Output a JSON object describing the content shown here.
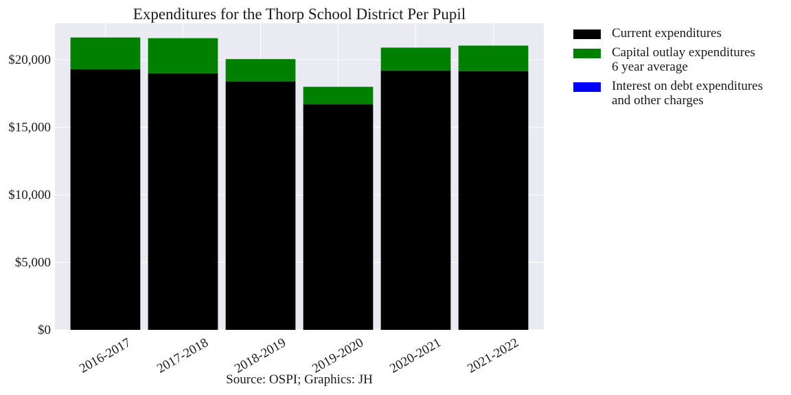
{
  "chart_data": {
    "type": "bar",
    "stacked": true,
    "title": "Expenditures for the Thorp School District Per Pupil",
    "categories": [
      "2016-2017",
      "2017-2018",
      "2018-2019",
      "2019-2020",
      "2020-2021",
      "2021-2022"
    ],
    "series": [
      {
        "name": "Current expenditures",
        "color": "#000000",
        "values": [
          19300,
          19000,
          18400,
          16700,
          19200,
          19150
        ]
      },
      {
        "name": "Capital outlay expenditures\n6 year average",
        "color": "#008000",
        "values": [
          2350,
          2600,
          1650,
          1300,
          1700,
          1900
        ]
      },
      {
        "name": "Interest on debt expenditures\nand other charges",
        "color": "#0000ff",
        "values": [
          0,
          0,
          0,
          0,
          0,
          0
        ]
      }
    ],
    "ylim": [
      0,
      22700
    ],
    "yticks": [
      0,
      5000,
      10000,
      15000,
      20000
    ],
    "ytick_labels": [
      "$0",
      "$5,000",
      "$10,000",
      "$15,000",
      "$20,000"
    ],
    "grid": true,
    "legend_position": "outside-right"
  },
  "source": "Source: OSPI; Graphics: JH"
}
